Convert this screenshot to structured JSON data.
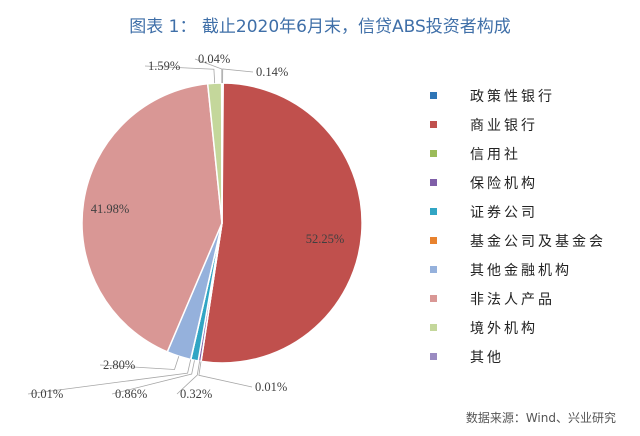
{
  "chart_data": {
    "type": "pie",
    "title": "图表 1： 截止2020年6月末，信贷ABS投资者构成",
    "legend_position": "right",
    "slices": [
      {
        "label": "政策性银行",
        "value": 0.14,
        "value_label": "0.14%",
        "color": "#2e75b6"
      },
      {
        "label": "商业银行",
        "value": 52.25,
        "value_label": "52.25%",
        "color": "#c0504d"
      },
      {
        "label": "信用社",
        "value": 0.01,
        "value_label": "0.01%",
        "color": "#9bbb59"
      },
      {
        "label": "保险机构",
        "value": 0.32,
        "value_label": "0.32%",
        "color": "#7f5fa8"
      },
      {
        "label": "证券公司",
        "value": 0.86,
        "value_label": "0.86%",
        "color": "#31a5c4"
      },
      {
        "label": "基金公司及基金会",
        "value": 0.01,
        "value_label": "0.01%",
        "color": "#e8822e"
      },
      {
        "label": "其他金融机构",
        "value": 2.8,
        "value_label": "2.80%",
        "color": "#95b1dc"
      },
      {
        "label": "非法人产品",
        "value": 41.98,
        "value_label": "41.98%",
        "color": "#d99795"
      },
      {
        "label": "境外机构",
        "value": 1.59,
        "value_label": "1.59%",
        "color": "#c4d79b"
      },
      {
        "label": "其他",
        "value": 0.04,
        "value_label": "0.04%",
        "color": "#9a8bc1"
      }
    ]
  },
  "source": "数据来源：Wind、兴业研究"
}
